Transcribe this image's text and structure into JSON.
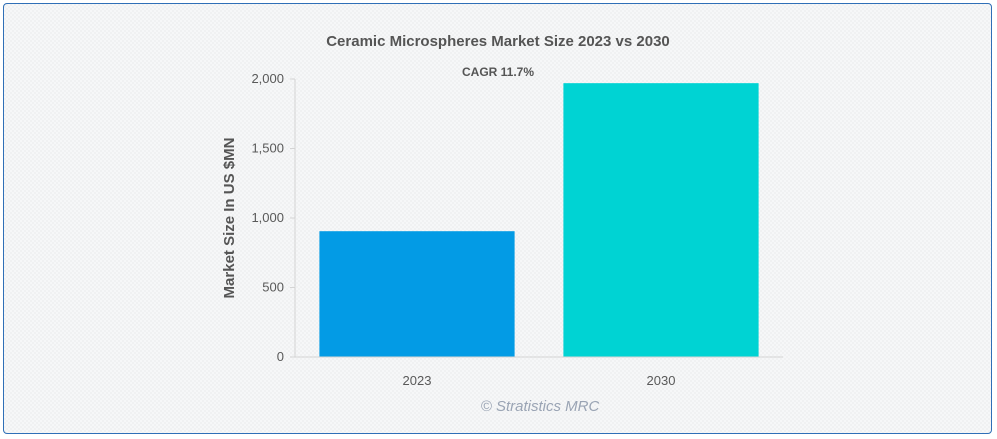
{
  "chart_data": {
    "type": "bar",
    "title": "Ceramic Microspheres Market Size 2023 vs 2030",
    "annotation": "CAGR 11.7%",
    "ylabel": "Market Size In US $MN",
    "xlabel": "",
    "categories": [
      "2023",
      "2030"
    ],
    "values": [
      905,
      1970
    ],
    "bar_colors": [
      "#039be5",
      "#00d3d3"
    ],
    "ylim": [
      0,
      2000
    ],
    "y_ticks": [
      0,
      500,
      1000,
      1500,
      2000
    ],
    "y_tick_labels": [
      "0",
      "500",
      "1,000",
      "1,500",
      "2,000"
    ],
    "grid": false,
    "legend": "none"
  },
  "watermark": "© Stratistics MRC"
}
